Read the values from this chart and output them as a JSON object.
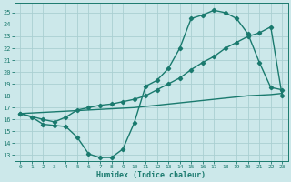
{
  "xlabel": "Humidex (Indice chaleur)",
  "bg_color": "#cce8ea",
  "grid_color": "#aacfd2",
  "line_color": "#1a7a6e",
  "xlim": [
    -0.5,
    23.5
  ],
  "ylim": [
    12.5,
    25.8
  ],
  "yticks": [
    13,
    14,
    15,
    16,
    17,
    18,
    19,
    20,
    21,
    22,
    23,
    24,
    25
  ],
  "xticks": [
    0,
    1,
    2,
    3,
    4,
    5,
    6,
    7,
    8,
    9,
    10,
    11,
    12,
    13,
    14,
    15,
    16,
    17,
    18,
    19,
    20,
    21,
    22,
    23
  ],
  "line1_x": [
    0,
    1,
    2,
    3,
    4,
    5,
    6,
    7,
    8,
    9,
    10,
    11,
    12,
    13,
    14,
    15,
    16,
    17,
    18,
    19,
    20,
    21,
    22,
    23
  ],
  "line1_y": [
    16.5,
    16.2,
    15.6,
    15.5,
    15.4,
    14.5,
    13.1,
    12.8,
    12.8,
    13.5,
    15.7,
    18.8,
    19.3,
    20.3,
    22.0,
    24.5,
    24.8,
    25.2,
    25.0,
    24.5,
    23.2,
    20.8,
    18.7,
    18.5
  ],
  "line2_x": [
    0,
    2,
    3,
    4,
    5,
    6,
    7,
    8,
    9,
    10,
    11,
    12,
    13,
    14,
    15,
    16,
    17,
    18,
    19,
    20,
    21,
    22,
    23
  ],
  "line2_y": [
    16.5,
    16.0,
    15.8,
    16.2,
    16.8,
    17.0,
    17.2,
    17.3,
    17.5,
    17.7,
    18.0,
    18.5,
    19.0,
    19.5,
    20.2,
    20.8,
    21.3,
    22.0,
    22.5,
    23.0,
    23.3,
    23.8,
    18.0
  ],
  "line3_x": [
    0,
    1,
    2,
    3,
    4,
    5,
    6,
    7,
    8,
    9,
    10,
    11,
    12,
    13,
    14,
    15,
    16,
    17,
    18,
    19,
    20,
    21,
    22,
    23
  ],
  "line3_y": [
    16.5,
    16.55,
    16.6,
    16.65,
    16.7,
    16.75,
    16.8,
    16.85,
    16.9,
    16.95,
    17.0,
    17.1,
    17.2,
    17.3,
    17.4,
    17.5,
    17.6,
    17.7,
    17.8,
    17.9,
    18.0,
    18.05,
    18.1,
    18.2
  ]
}
